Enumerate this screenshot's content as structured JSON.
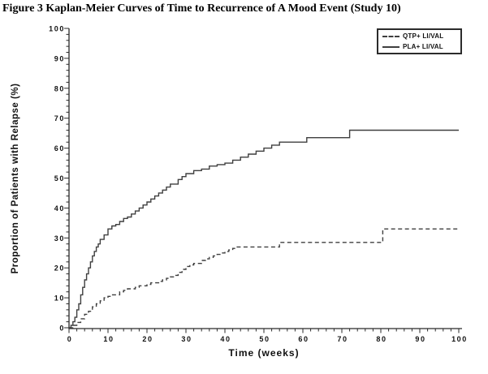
{
  "title": "Figure 3 Kaplan-Meier Curves of Time to Recurrence of A Mood Event (Study 10)",
  "chart_data": {
    "type": "line",
    "subtype": "kaplan-meier-step",
    "title": "Figure 3 Kaplan-Meier Curves of Time to Recurrence of A Mood Event (Study 10)",
    "xlabel": "Time (weeks)",
    "ylabel": "Proportion of Patients with Relapse (%)",
    "xlim": [
      0,
      100
    ],
    "ylim": [
      0,
      100
    ],
    "x_ticks_major": [
      0,
      10,
      20,
      30,
      40,
      50,
      60,
      70,
      80,
      90,
      100
    ],
    "y_ticks_major": [
      0,
      10,
      20,
      30,
      40,
      50,
      60,
      70,
      80,
      90,
      100
    ],
    "minor_tick_step": 2,
    "grid": false,
    "legend_position": "top-right",
    "axis_color": "#2a2a2a",
    "text_color": "#111111",
    "series": [
      {
        "id": "qtp",
        "name": "QTP+ LI/VAL",
        "style": "dashed",
        "color": "#3f3f3f",
        "points": [
          [
            0,
            0
          ],
          [
            1,
            0.8
          ],
          [
            2,
            1.8
          ],
          [
            3,
            3
          ],
          [
            4,
            4.5
          ],
          [
            5,
            5.5
          ],
          [
            6,
            7
          ],
          [
            7,
            8
          ],
          [
            8,
            9
          ],
          [
            9,
            10
          ],
          [
            10,
            10.5
          ],
          [
            11,
            11
          ],
          [
            13,
            12
          ],
          [
            14,
            12.5
          ],
          [
            15,
            13
          ],
          [
            17,
            13.5
          ],
          [
            18,
            14
          ],
          [
            20,
            14.5
          ],
          [
            21,
            15
          ],
          [
            23,
            15.5
          ],
          [
            24,
            16
          ],
          [
            25,
            16.5
          ],
          [
            26,
            17
          ],
          [
            27,
            17.5
          ],
          [
            28,
            18.5
          ],
          [
            29,
            19.5
          ],
          [
            30,
            20.5
          ],
          [
            31,
            21
          ],
          [
            32,
            21.5
          ],
          [
            34,
            22.5
          ],
          [
            35,
            23
          ],
          [
            36,
            23.5
          ],
          [
            37,
            24
          ],
          [
            38,
            24.5
          ],
          [
            39,
            25
          ],
          [
            40,
            25.5
          ],
          [
            41,
            26
          ],
          [
            42,
            26.5
          ],
          [
            43,
            27
          ],
          [
            54,
            28.5
          ],
          [
            80.5,
            33
          ],
          [
            100,
            33
          ]
        ]
      },
      {
        "id": "pla",
        "name": "PLA+ LI/VAL",
        "style": "solid",
        "color": "#3f3f3f",
        "points": [
          [
            0,
            0
          ],
          [
            0.5,
            0.8
          ],
          [
            1,
            2
          ],
          [
            1.5,
            3.5
          ],
          [
            2,
            6
          ],
          [
            2.5,
            8
          ],
          [
            3,
            11
          ],
          [
            3.5,
            13.5
          ],
          [
            4,
            16
          ],
          [
            4.5,
            18
          ],
          [
            5,
            20
          ],
          [
            5.5,
            22
          ],
          [
            6,
            24
          ],
          [
            6.5,
            25.5
          ],
          [
            7,
            27
          ],
          [
            7.5,
            28
          ],
          [
            8,
            29.5
          ],
          [
            9,
            31
          ],
          [
            10,
            33
          ],
          [
            11,
            34
          ],
          [
            12,
            34.5
          ],
          [
            13,
            35.5
          ],
          [
            14,
            36.5
          ],
          [
            15,
            37
          ],
          [
            16,
            38
          ],
          [
            17,
            39
          ],
          [
            18,
            40
          ],
          [
            19,
            41
          ],
          [
            20,
            42
          ],
          [
            21,
            43
          ],
          [
            22,
            44
          ],
          [
            23,
            45
          ],
          [
            24,
            46
          ],
          [
            25,
            47
          ],
          [
            26,
            48
          ],
          [
            28,
            49.5
          ],
          [
            29,
            50.5
          ],
          [
            30,
            51.5
          ],
          [
            32,
            52.5
          ],
          [
            34,
            53
          ],
          [
            36,
            54
          ],
          [
            38,
            54.5
          ],
          [
            40,
            55
          ],
          [
            42,
            56
          ],
          [
            44,
            57
          ],
          [
            46,
            58
          ],
          [
            48,
            59
          ],
          [
            50,
            60
          ],
          [
            52,
            61
          ],
          [
            54,
            62
          ],
          [
            61,
            63.5
          ],
          [
            72,
            66
          ],
          [
            100,
            66
          ]
        ]
      }
    ]
  }
}
